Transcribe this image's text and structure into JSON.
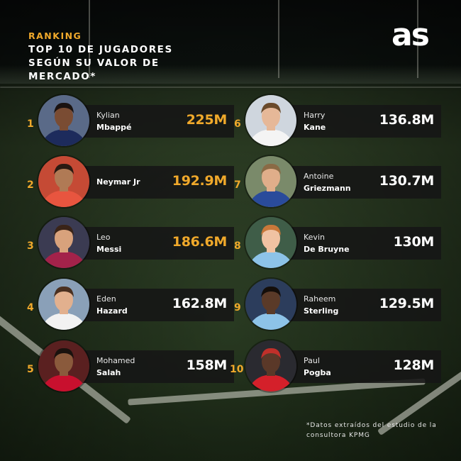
{
  "header": {
    "kicker": "RANKING",
    "title": "TOP 10 DE JUGADORES SEGÚN SU VALOR DE MERCADO*",
    "logo": "as"
  },
  "colors": {
    "accent": "#f0a92b",
    "panel": "#161616",
    "text": "#ffffff"
  },
  "players": [
    {
      "rank": "1",
      "first": "Kylian",
      "last": "Mbappé",
      "value": "225M",
      "highlight": true,
      "photo": {
        "skin": "#7a4c33",
        "shirt": "#1d2b5c",
        "hair": "#1a1210",
        "bg": "#5a6a88"
      }
    },
    {
      "rank": "2",
      "first": "",
      "last": "Neymar Jr",
      "value": "192.9M",
      "highlight": true,
      "photo": {
        "skin": "#b07a55",
        "shirt": "#e8553f",
        "hair": "#2a1a12",
        "bg": "#c54a35"
      }
    },
    {
      "rank": "3",
      "first": "Leo",
      "last": "Messi",
      "value": "186.6M",
      "highlight": true,
      "photo": {
        "skin": "#d8a27c",
        "shirt": "#a3224a",
        "hair": "#3a2418",
        "bg": "#3b3b52"
      }
    },
    {
      "rank": "4",
      "first": "Eden",
      "last": "Hazard",
      "value": "162.8M",
      "highlight": false,
      "photo": {
        "skin": "#e2b08e",
        "shirt": "#f2f2f2",
        "hair": "#4a3020",
        "bg": "#8aa0b8"
      }
    },
    {
      "rank": "5",
      "first": "Mohamed",
      "last": "Salah",
      "value": "158M",
      "highlight": false,
      "photo": {
        "skin": "#8a5a3c",
        "shirt": "#c8102e",
        "hair": "#1a120e",
        "bg": "#5a2020"
      }
    },
    {
      "rank": "6",
      "first": "Harry",
      "last": "Kane",
      "value": "136.8M",
      "highlight": false,
      "photo": {
        "skin": "#e6b898",
        "shirt": "#f4f4f4",
        "hair": "#6a4a2a",
        "bg": "#cfd6de"
      }
    },
    {
      "rank": "7",
      "first": "Antoine",
      "last": "Griezmann",
      "value": "130.7M",
      "highlight": false,
      "photo": {
        "skin": "#e0ae8a",
        "shirt": "#2a4b9b",
        "hair": "#8a6a45",
        "bg": "#7a8a6a"
      }
    },
    {
      "rank": "8",
      "first": "Kevin",
      "last": "De Bruyne",
      "value": "130M",
      "highlight": false,
      "photo": {
        "skin": "#f0c2a2",
        "shirt": "#8dc3e8",
        "hair": "#c8783a",
        "bg": "#3f5d48"
      }
    },
    {
      "rank": "9",
      "first": "Raheem",
      "last": "Sterling",
      "value": "129.5M",
      "highlight": false,
      "photo": {
        "skin": "#5a3a28",
        "shirt": "#8dc3e8",
        "hair": "#140e0a",
        "bg": "#2c3d5c"
      }
    },
    {
      "rank": "10",
      "first": "Paul",
      "last": "Pogba",
      "value": "128M",
      "highlight": false,
      "photo": {
        "skin": "#5a3828",
        "shirt": "#d4202a",
        "hair": "#c0302a",
        "bg": "#2a2a30"
      }
    }
  ],
  "footnote": "*Datos extraídos del estudio de la consultora KPMG"
}
